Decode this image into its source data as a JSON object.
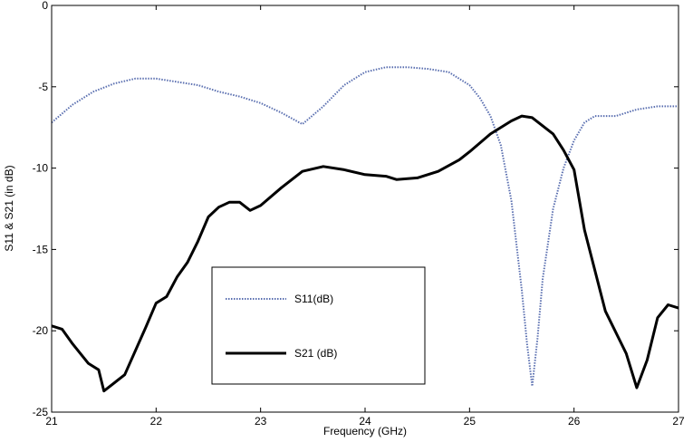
{
  "chart_data": {
    "type": "line",
    "xlabel": "Frequency (GHz)",
    "ylabel": "S11 & S21 (in dB)",
    "xlim": [
      21,
      27
    ],
    "ylim": [
      -25,
      0
    ],
    "xticks": [
      21,
      22,
      23,
      24,
      25,
      26,
      27
    ],
    "yticks": [
      0,
      -5,
      -10,
      -15,
      -20,
      -25
    ],
    "grid": false,
    "legend_position": "lower-left inside",
    "series": [
      {
        "name": "S11(dB)",
        "color": "#5a6fb0",
        "style": "dotted",
        "x": [
          21.0,
          21.2,
          21.4,
          21.6,
          21.8,
          22.0,
          22.2,
          22.4,
          22.6,
          22.8,
          23.0,
          23.2,
          23.4,
          23.6,
          23.8,
          24.0,
          24.2,
          24.4,
          24.6,
          24.8,
          25.0,
          25.1,
          25.2,
          25.3,
          25.4,
          25.5,
          25.55,
          25.6,
          25.65,
          25.7,
          25.8,
          25.9,
          26.0,
          26.1,
          26.2,
          26.4,
          26.6,
          26.8,
          27.0
        ],
        "values": [
          -7.2,
          -6.1,
          -5.3,
          -4.8,
          -4.5,
          -4.5,
          -4.7,
          -4.9,
          -5.3,
          -5.6,
          -6.0,
          -6.6,
          -7.3,
          -6.2,
          -4.9,
          -4.1,
          -3.8,
          -3.8,
          -3.9,
          -4.1,
          -4.9,
          -5.7,
          -6.8,
          -8.6,
          -12.0,
          -17.5,
          -20.8,
          -23.4,
          -20.5,
          -16.8,
          -12.5,
          -10.0,
          -8.3,
          -7.2,
          -6.8,
          -6.8,
          -6.4,
          -6.2,
          -6.2
        ]
      },
      {
        "name": "S21 (dB)",
        "color": "#000000",
        "style": "solid",
        "x": [
          21.0,
          21.1,
          21.2,
          21.35,
          21.45,
          21.5,
          21.7,
          21.9,
          22.0,
          22.1,
          22.2,
          22.3,
          22.4,
          22.5,
          22.6,
          22.7,
          22.8,
          22.9,
          23.0,
          23.2,
          23.4,
          23.6,
          23.8,
          24.0,
          24.2,
          24.3,
          24.5,
          24.7,
          24.9,
          25.0,
          25.2,
          25.4,
          25.5,
          25.6,
          25.8,
          25.9,
          26.0,
          26.1,
          26.3,
          26.5,
          26.6,
          26.7,
          26.8,
          26.9,
          27.0
        ],
        "values": [
          -19.7,
          -19.9,
          -20.8,
          -22.0,
          -22.4,
          -23.7,
          -22.7,
          -19.8,
          -18.3,
          -17.9,
          -16.7,
          -15.8,
          -14.5,
          -13.0,
          -12.4,
          -12.1,
          -12.1,
          -12.6,
          -12.3,
          -11.2,
          -10.2,
          -9.9,
          -10.1,
          -10.4,
          -10.5,
          -10.7,
          -10.6,
          -10.2,
          -9.5,
          -9.0,
          -7.9,
          -7.1,
          -6.8,
          -6.9,
          -7.9,
          -8.9,
          -10.1,
          -13.8,
          -18.8,
          -21.4,
          -23.5,
          -21.8,
          -19.2,
          -18.4,
          -18.6
        ]
      }
    ]
  }
}
